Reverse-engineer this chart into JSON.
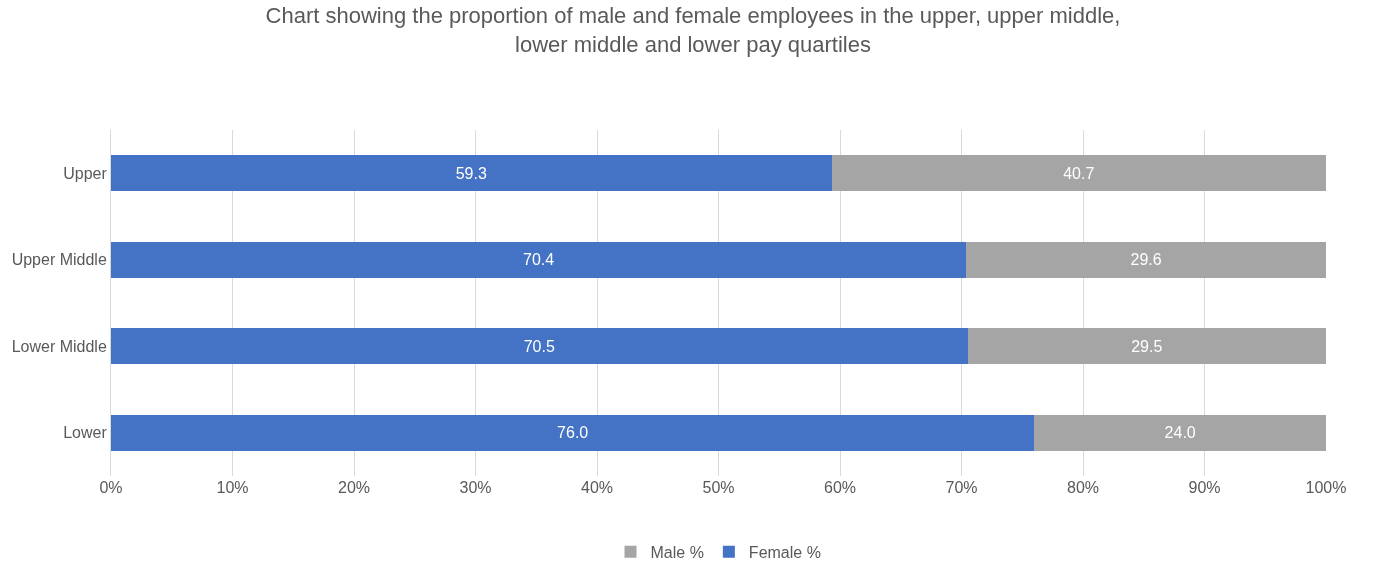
{
  "chart_data": {
    "type": "bar",
    "orientation": "horizontal",
    "stacked": true,
    "title": "Chart showing the proportion of male and female employees in the upper, upper middle, lower middle and lower pay quartiles",
    "categories": [
      "Upper",
      "Upper Middle",
      "Lower Middle",
      "Lower"
    ],
    "series": [
      {
        "name": "Female %",
        "color": "#4472c4",
        "values": [
          59.3,
          70.4,
          70.5,
          76.0
        ],
        "value_labels": [
          "59.3",
          "70.4",
          "70.5",
          "76.0"
        ]
      },
      {
        "name": "Male %",
        "color": "#a5a5a5",
        "values": [
          40.7,
          29.6,
          29.5,
          24.0
        ],
        "value_labels": [
          "40.7",
          "29.6",
          "29.5",
          "24.0"
        ]
      }
    ],
    "xlim": [
      0,
      100
    ],
    "xticks": [
      {
        "value": 0,
        "label": "0%"
      },
      {
        "value": 10,
        "label": "10%"
      },
      {
        "value": 20,
        "label": "20%"
      },
      {
        "value": 30,
        "label": "30%"
      },
      {
        "value": 40,
        "label": "40%"
      },
      {
        "value": 50,
        "label": "50%"
      },
      {
        "value": 60,
        "label": "60%"
      },
      {
        "value": 70,
        "label": "70%"
      },
      {
        "value": 80,
        "label": "80%"
      },
      {
        "value": 90,
        "label": "90%"
      },
      {
        "value": 100,
        "label": "100%"
      }
    ],
    "grid": "x",
    "legend": "bottom"
  }
}
